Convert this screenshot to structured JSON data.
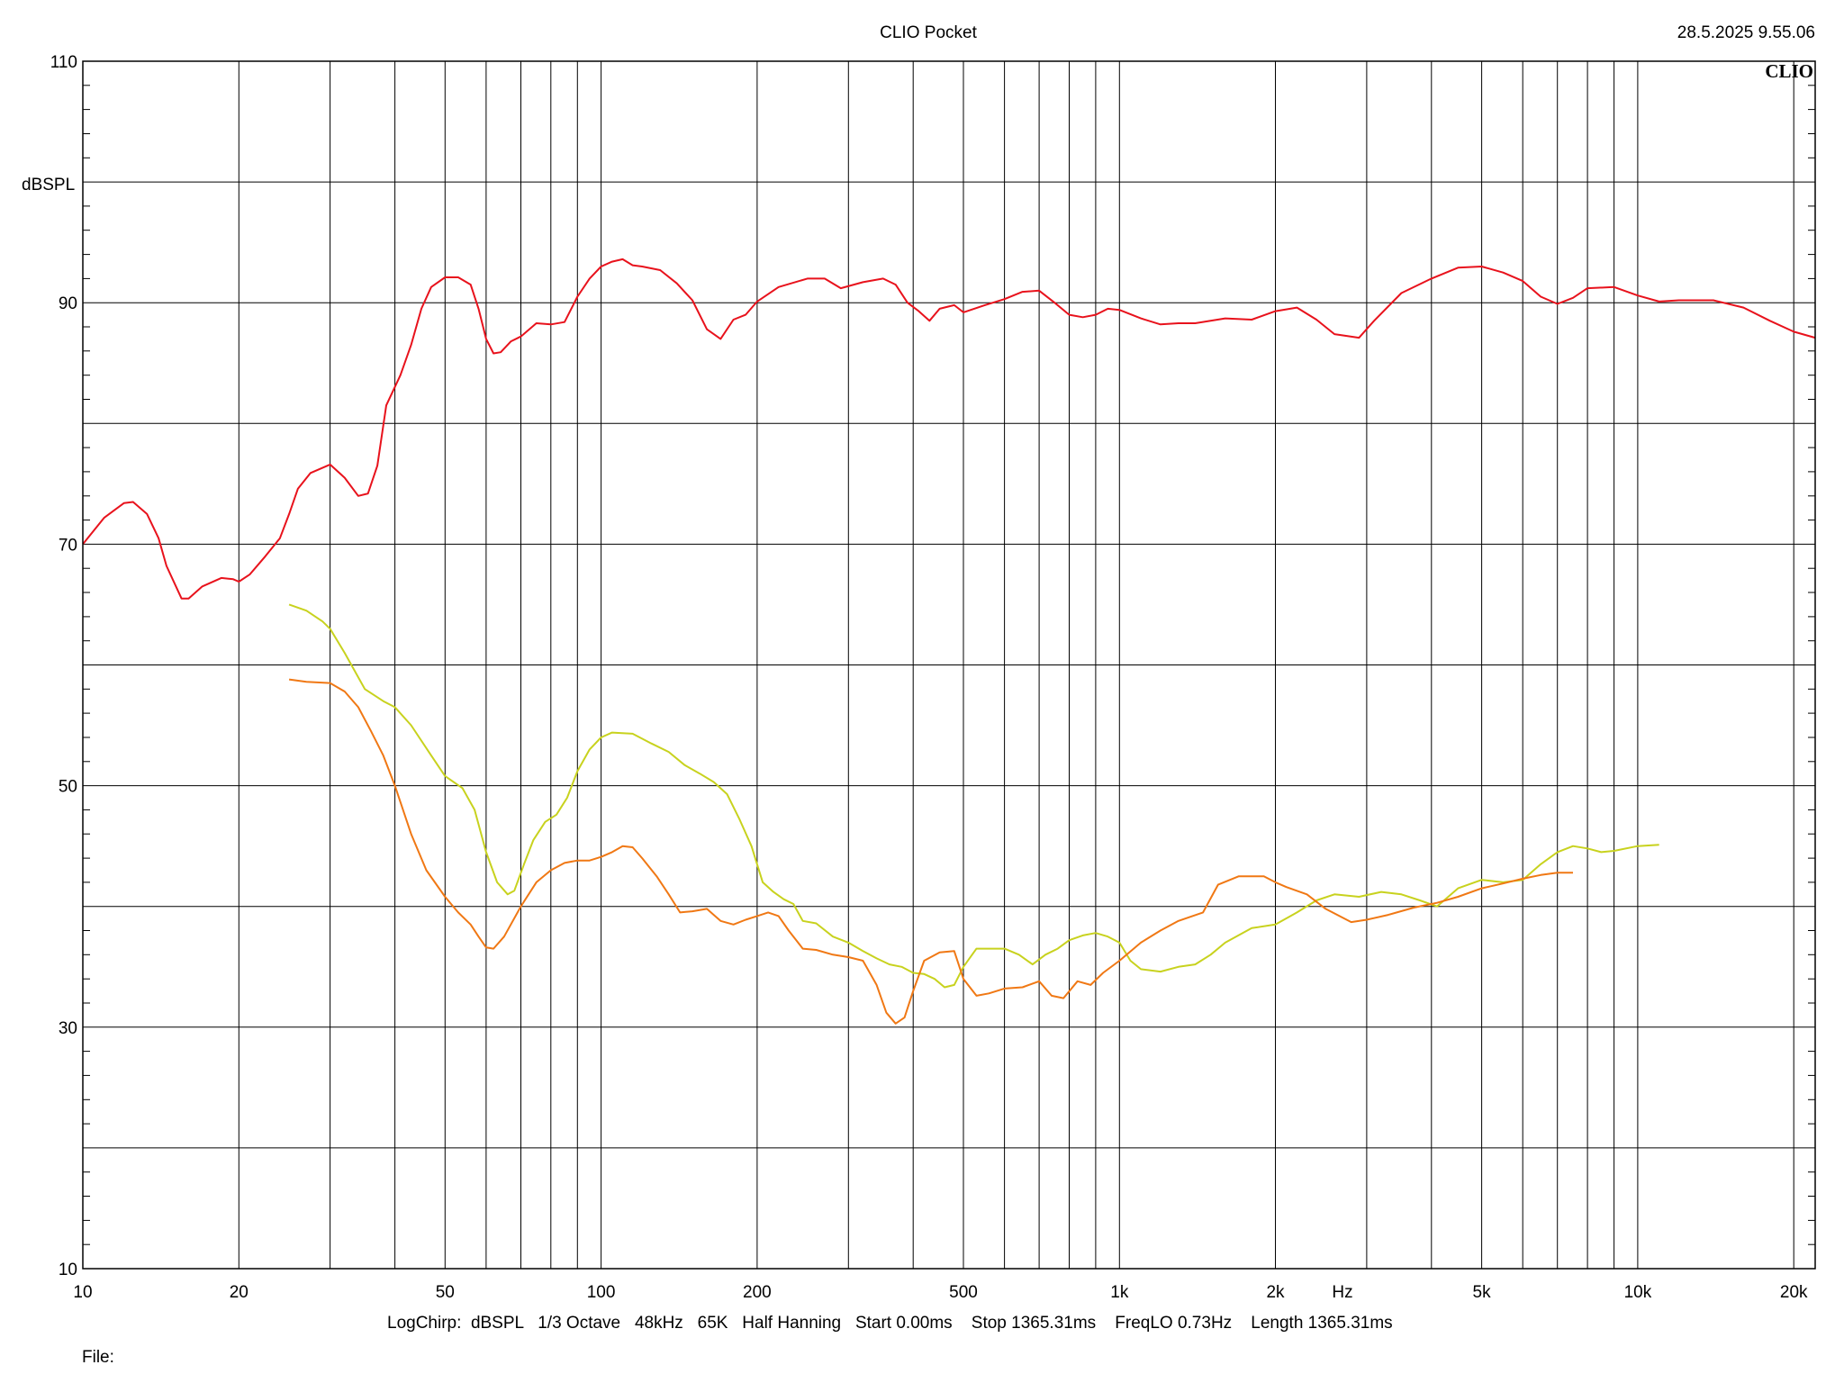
{
  "header": {
    "title": "CLIO Pocket",
    "timestamp": "28.5.2025 9.55.06",
    "brand": "CLIO"
  },
  "footer": {
    "settings": "LogChirp:  dBSPL   1/3 Octave   48kHz   65K   Half Hanning   Start 0.00ms    Stop 1365.31ms    FreqLO 0.73Hz    Length 1365.31ms",
    "file_label": "File:"
  },
  "colors": {
    "grid": "#000000",
    "red": "#e8121c",
    "yellow": "#c8d21e",
    "orange": "#f07814"
  },
  "chart_data": {
    "type": "line",
    "xscale": "log",
    "xlim": [
      10,
      22000
    ],
    "ylim": [
      10,
      110
    ],
    "ylabel": "dBSPL",
    "xlabel": "Hz",
    "y_ticks": [
      {
        "value": 110,
        "label": "110"
      },
      {
        "value": 90,
        "label": "90"
      },
      {
        "value": 70,
        "label": "70"
      },
      {
        "value": 50,
        "label": "50"
      },
      {
        "value": 30,
        "label": "30"
      },
      {
        "value": 10,
        "label": "10"
      }
    ],
    "x_ticks": [
      {
        "value": 10,
        "label": "10"
      },
      {
        "value": 20,
        "label": "20"
      },
      {
        "value": 50,
        "label": "50"
      },
      {
        "value": 100,
        "label": "100"
      },
      {
        "value": 200,
        "label": "200"
      },
      {
        "value": 500,
        "label": "500"
      },
      {
        "value": 1000,
        "label": "1k"
      },
      {
        "value": 2000,
        "label": "2k"
      },
      {
        "value": 5000,
        "label": "5k"
      },
      {
        "value": 10000,
        "label": "10k"
      },
      {
        "value": 20000,
        "label": "20k"
      }
    ],
    "grid": true,
    "series": [
      {
        "color": "red",
        "points": [
          [
            10,
            70
          ],
          [
            11,
            72.2
          ],
          [
            12,
            73.4
          ],
          [
            12.5,
            73.5
          ],
          [
            13.3,
            72.5
          ],
          [
            14,
            70.5
          ],
          [
            14.5,
            68.2
          ],
          [
            15.5,
            65.5
          ],
          [
            16,
            65.5
          ],
          [
            17,
            66.5
          ],
          [
            18.5,
            67.2
          ],
          [
            19.5,
            67.1
          ],
          [
            20,
            66.9
          ],
          [
            21,
            67.5
          ],
          [
            22.5,
            69
          ],
          [
            24,
            70.5
          ],
          [
            25,
            72.5
          ],
          [
            26,
            74.6
          ],
          [
            27.5,
            75.9
          ],
          [
            30,
            76.6
          ],
          [
            32,
            75.5
          ],
          [
            34,
            74
          ],
          [
            35.5,
            74.2
          ],
          [
            37,
            76.5
          ],
          [
            38.5,
            81.5
          ],
          [
            41,
            84
          ],
          [
            43,
            86.5
          ],
          [
            45,
            89.5
          ],
          [
            47,
            91.3
          ],
          [
            50,
            92.1
          ],
          [
            53,
            92.1
          ],
          [
            56,
            91.5
          ],
          [
            58,
            89.5
          ],
          [
            60,
            87
          ],
          [
            62,
            85.8
          ],
          [
            64,
            85.9
          ],
          [
            67,
            86.8
          ],
          [
            70,
            87.2
          ],
          [
            75,
            88.3
          ],
          [
            80,
            88.2
          ],
          [
            85,
            88.4
          ],
          [
            90,
            90.5
          ],
          [
            95,
            92
          ],
          [
            100,
            93
          ],
          [
            105,
            93.4
          ],
          [
            110,
            93.6
          ],
          [
            115,
            93.1
          ],
          [
            120,
            93
          ],
          [
            130,
            92.7
          ],
          [
            140,
            91.6
          ],
          [
            150,
            90.2
          ],
          [
            160,
            87.8
          ],
          [
            170,
            87
          ],
          [
            180,
            88.6
          ],
          [
            190,
            89
          ],
          [
            200,
            90.1
          ],
          [
            220,
            91.3
          ],
          [
            250,
            92
          ],
          [
            270,
            92
          ],
          [
            290,
            91.2
          ],
          [
            320,
            91.7
          ],
          [
            350,
            92
          ],
          [
            370,
            91.5
          ],
          [
            390,
            90
          ],
          [
            410,
            89.3
          ],
          [
            430,
            88.5
          ],
          [
            450,
            89.5
          ],
          [
            480,
            89.8
          ],
          [
            500,
            89.2
          ],
          [
            550,
            89.8
          ],
          [
            600,
            90.3
          ],
          [
            650,
            90.9
          ],
          [
            700,
            91
          ],
          [
            750,
            90
          ],
          [
            800,
            89
          ],
          [
            850,
            88.8
          ],
          [
            900,
            89
          ],
          [
            950,
            89.5
          ],
          [
            1000,
            89.4
          ],
          [
            1100,
            88.7
          ],
          [
            1200,
            88.2
          ],
          [
            1300,
            88.3
          ],
          [
            1400,
            88.3
          ],
          [
            1600,
            88.7
          ],
          [
            1800,
            88.6
          ],
          [
            2000,
            89.3
          ],
          [
            2200,
            89.6
          ],
          [
            2400,
            88.6
          ],
          [
            2600,
            87.4
          ],
          [
            2900,
            87.1
          ],
          [
            3100,
            88.5
          ],
          [
            3500,
            90.8
          ],
          [
            4000,
            92
          ],
          [
            4500,
            92.9
          ],
          [
            5000,
            93
          ],
          [
            5500,
            92.5
          ],
          [
            6000,
            91.8
          ],
          [
            6500,
            90.5
          ],
          [
            7000,
            89.9
          ],
          [
            7500,
            90.4
          ],
          [
            8000,
            91.2
          ],
          [
            9000,
            91.3
          ],
          [
            10000,
            90.6
          ],
          [
            11000,
            90.1
          ],
          [
            12000,
            90.2
          ],
          [
            14000,
            90.2
          ],
          [
            16000,
            89.6
          ],
          [
            18000,
            88.5
          ],
          [
            20000,
            87.6
          ],
          [
            22000,
            87.1
          ]
        ]
      },
      {
        "color": "yellow",
        "points": [
          [
            25,
            65
          ],
          [
            27,
            64.5
          ],
          [
            29,
            63.6
          ],
          [
            30,
            63
          ],
          [
            32,
            61
          ],
          [
            35,
            58
          ],
          [
            38,
            57
          ],
          [
            40,
            56.5
          ],
          [
            43,
            55
          ],
          [
            47,
            52.5
          ],
          [
            50,
            50.8
          ],
          [
            54,
            49.8
          ],
          [
            57,
            48
          ],
          [
            60,
            44.5
          ],
          [
            63,
            42
          ],
          [
            66,
            41
          ],
          [
            68,
            41.3
          ],
          [
            71,
            43.5
          ],
          [
            74,
            45.5
          ],
          [
            78,
            47
          ],
          [
            82,
            47.6
          ],
          [
            86,
            49
          ],
          [
            90,
            51.2
          ],
          [
            95,
            53
          ],
          [
            100,
            54
          ],
          [
            105,
            54.4
          ],
          [
            115,
            54.3
          ],
          [
            125,
            53.5
          ],
          [
            135,
            52.8
          ],
          [
            145,
            51.7
          ],
          [
            155,
            51
          ],
          [
            165,
            50.3
          ],
          [
            175,
            49.3
          ],
          [
            185,
            47.2
          ],
          [
            195,
            45
          ],
          [
            205,
            42
          ],
          [
            215,
            41.2
          ],
          [
            225,
            40.6
          ],
          [
            235,
            40.2
          ],
          [
            245,
            38.8
          ],
          [
            260,
            38.6
          ],
          [
            280,
            37.5
          ],
          [
            300,
            37
          ],
          [
            320,
            36.3
          ],
          [
            340,
            35.7
          ],
          [
            360,
            35.2
          ],
          [
            380,
            35
          ],
          [
            400,
            34.5
          ],
          [
            420,
            34.4
          ],
          [
            440,
            34
          ],
          [
            460,
            33.3
          ],
          [
            480,
            33.5
          ],
          [
            500,
            35
          ],
          [
            530,
            36.5
          ],
          [
            560,
            36.5
          ],
          [
            600,
            36.5
          ],
          [
            640,
            36
          ],
          [
            680,
            35.2
          ],
          [
            720,
            36
          ],
          [
            760,
            36.5
          ],
          [
            800,
            37.2
          ],
          [
            850,
            37.6
          ],
          [
            900,
            37.8
          ],
          [
            950,
            37.5
          ],
          [
            1000,
            37
          ],
          [
            1050,
            35.5
          ],
          [
            1100,
            34.8
          ],
          [
            1200,
            34.6
          ],
          [
            1300,
            35
          ],
          [
            1400,
            35.2
          ],
          [
            1500,
            36
          ],
          [
            1600,
            37
          ],
          [
            1800,
            38.2
          ],
          [
            2000,
            38.5
          ],
          [
            2200,
            39.5
          ],
          [
            2400,
            40.5
          ],
          [
            2600,
            41
          ],
          [
            2900,
            40.8
          ],
          [
            3200,
            41.2
          ],
          [
            3500,
            41
          ],
          [
            3800,
            40.5
          ],
          [
            4100,
            40
          ],
          [
            4500,
            41.5
          ],
          [
            5000,
            42.2
          ],
          [
            5500,
            42
          ],
          [
            6000,
            42.2
          ],
          [
            6500,
            43.5
          ],
          [
            7000,
            44.5
          ],
          [
            7500,
            45
          ],
          [
            8000,
            44.8
          ],
          [
            8500,
            44.5
          ],
          [
            9000,
            44.6
          ],
          [
            10000,
            45
          ],
          [
            11000,
            45.1
          ]
        ]
      },
      {
        "color": "orange",
        "points": [
          [
            25,
            58.8
          ],
          [
            27,
            58.6
          ],
          [
            30,
            58.5
          ],
          [
            32,
            57.8
          ],
          [
            34,
            56.5
          ],
          [
            36,
            54.5
          ],
          [
            38,
            52.5
          ],
          [
            40,
            50
          ],
          [
            43,
            46
          ],
          [
            46,
            43
          ],
          [
            50,
            40.8
          ],
          [
            53,
            39.5
          ],
          [
            56,
            38.5
          ],
          [
            58,
            37.5
          ],
          [
            60,
            36.6
          ],
          [
            62,
            36.5
          ],
          [
            65,
            37.5
          ],
          [
            70,
            40
          ],
          [
            75,
            42
          ],
          [
            80,
            43
          ],
          [
            85,
            43.6
          ],
          [
            90,
            43.8
          ],
          [
            95,
            43.8
          ],
          [
            100,
            44.1
          ],
          [
            105,
            44.5
          ],
          [
            110,
            45
          ],
          [
            115,
            44.9
          ],
          [
            120,
            44
          ],
          [
            128,
            42.5
          ],
          [
            135,
            41
          ],
          [
            142,
            39.5
          ],
          [
            150,
            39.6
          ],
          [
            160,
            39.8
          ],
          [
            170,
            38.8
          ],
          [
            180,
            38.5
          ],
          [
            190,
            38.9
          ],
          [
            200,
            39.2
          ],
          [
            210,
            39.5
          ],
          [
            220,
            39.2
          ],
          [
            230,
            38
          ],
          [
            245,
            36.5
          ],
          [
            260,
            36.4
          ],
          [
            280,
            36
          ],
          [
            300,
            35.8
          ],
          [
            320,
            35.5
          ],
          [
            340,
            33.5
          ],
          [
            355,
            31.2
          ],
          [
            370,
            30.3
          ],
          [
            385,
            30.8
          ],
          [
            400,
            33
          ],
          [
            420,
            35.5
          ],
          [
            450,
            36.2
          ],
          [
            480,
            36.3
          ],
          [
            500,
            34
          ],
          [
            530,
            32.6
          ],
          [
            560,
            32.8
          ],
          [
            600,
            33.2
          ],
          [
            650,
            33.3
          ],
          [
            700,
            33.8
          ],
          [
            740,
            32.6
          ],
          [
            780,
            32.4
          ],
          [
            830,
            33.8
          ],
          [
            880,
            33.5
          ],
          [
            930,
            34.5
          ],
          [
            1000,
            35.5
          ],
          [
            1100,
            37
          ],
          [
            1200,
            38
          ],
          [
            1300,
            38.8
          ],
          [
            1450,
            39.5
          ],
          [
            1550,
            41.8
          ],
          [
            1700,
            42.5
          ],
          [
            1900,
            42.5
          ],
          [
            2000,
            42
          ],
          [
            2100,
            41.6
          ],
          [
            2300,
            41
          ],
          [
            2500,
            39.8
          ],
          [
            2800,
            38.7
          ],
          [
            3000,
            38.9
          ],
          [
            3300,
            39.3
          ],
          [
            3700,
            39.9
          ],
          [
            4100,
            40.3
          ],
          [
            4500,
            40.8
          ],
          [
            5000,
            41.5
          ],
          [
            5500,
            41.9
          ],
          [
            6000,
            42.3
          ],
          [
            6500,
            42.6
          ],
          [
            7000,
            42.8
          ],
          [
            7500,
            42.8
          ]
        ]
      }
    ]
  }
}
